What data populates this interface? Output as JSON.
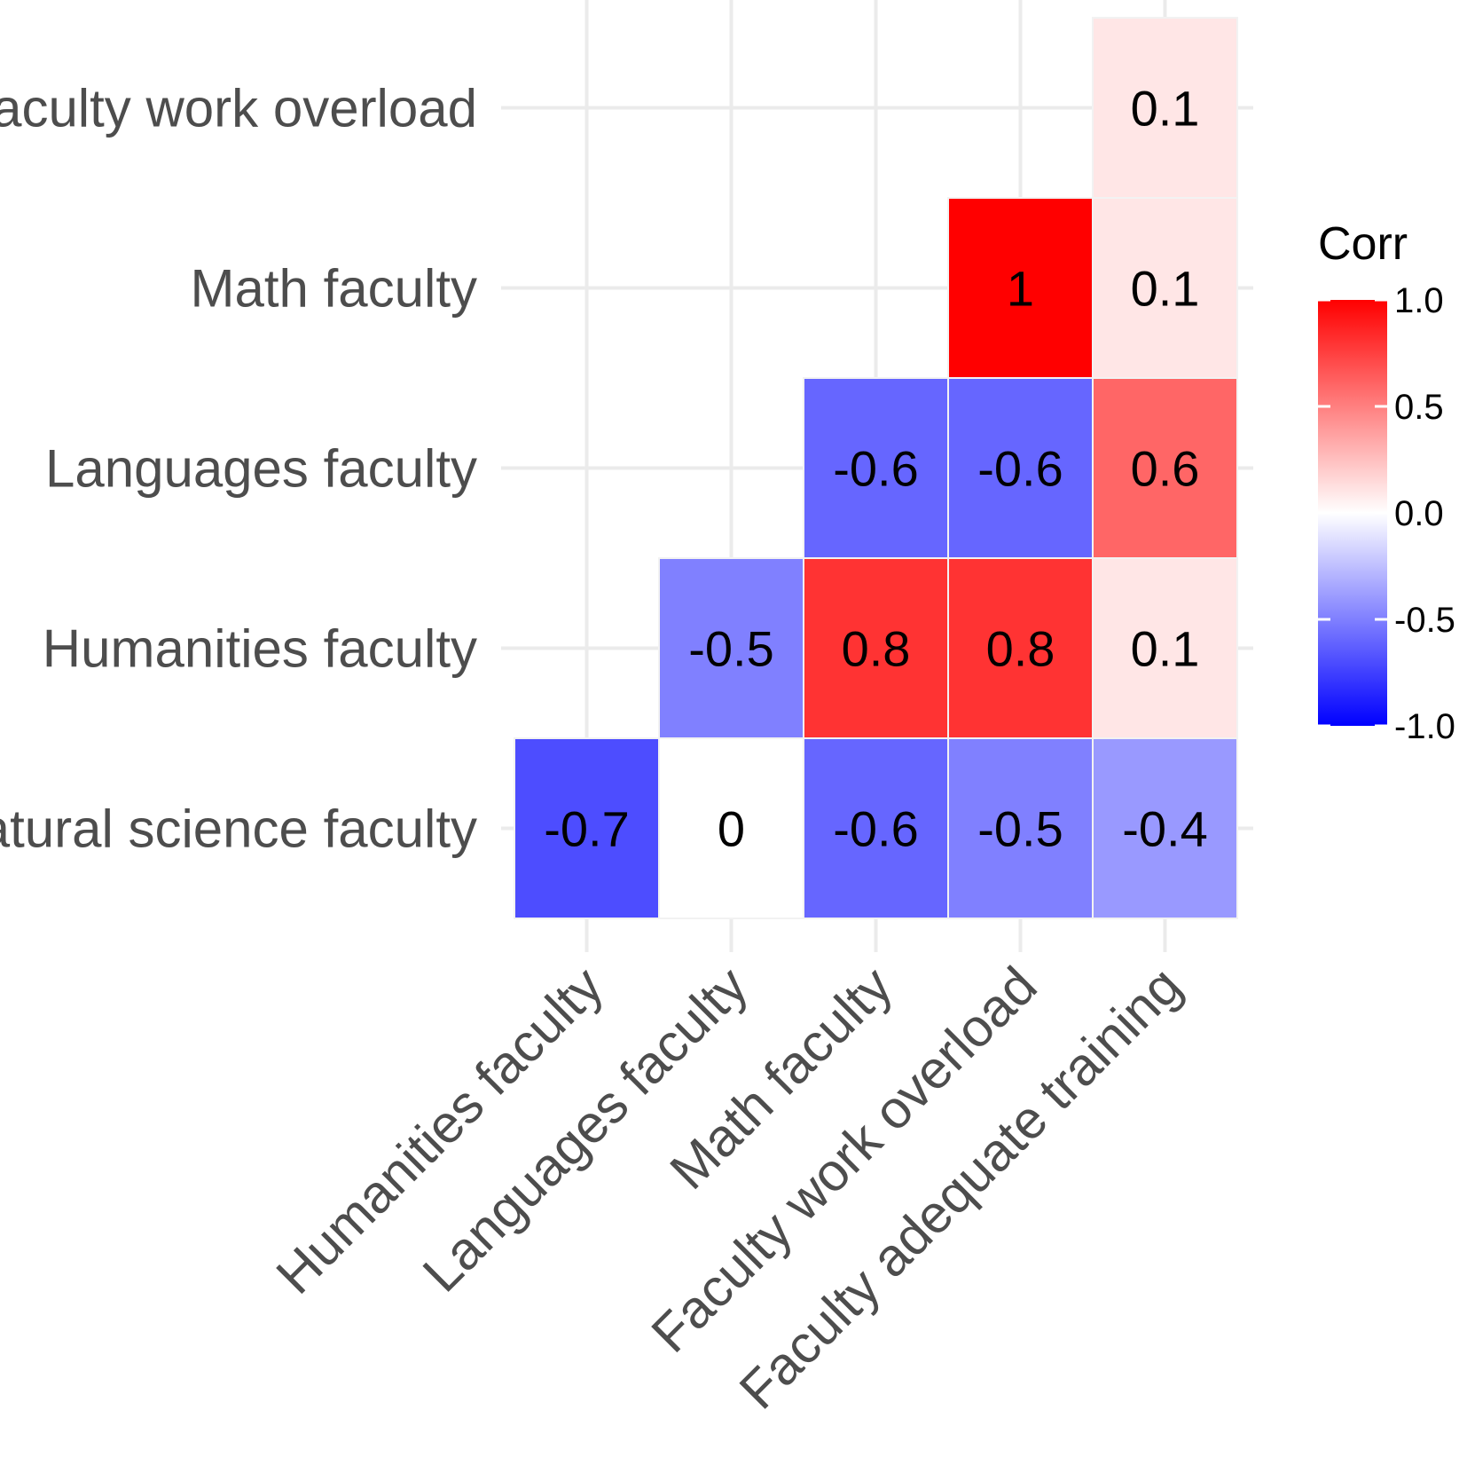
{
  "chart_data": {
    "type": "heatmap",
    "title": "",
    "xlabel": "",
    "ylabel": "",
    "x_categories": [
      "Humanities faculty",
      "Languages faculty",
      "Math faculty",
      "Faculty work overload",
      "Faculty adequate training"
    ],
    "y_categories": [
      "Natural science faculty",
      "Humanities faculty",
      "Languages faculty",
      "Math faculty",
      "Faculty work overload"
    ],
    "cells": [
      {
        "x": "Humanities faculty",
        "y": "Natural science faculty",
        "value": -0.7,
        "label": "-0.7"
      },
      {
        "x": "Languages faculty",
        "y": "Natural science faculty",
        "value": 0,
        "label": "0"
      },
      {
        "x": "Math faculty",
        "y": "Natural science faculty",
        "value": -0.6,
        "label": "-0.6"
      },
      {
        "x": "Faculty work overload",
        "y": "Natural science faculty",
        "value": -0.5,
        "label": "-0.5"
      },
      {
        "x": "Faculty adequate training",
        "y": "Natural science faculty",
        "value": -0.4,
        "label": "-0.4"
      },
      {
        "x": "Languages faculty",
        "y": "Humanities faculty",
        "value": -0.5,
        "label": "-0.5"
      },
      {
        "x": "Math faculty",
        "y": "Humanities faculty",
        "value": 0.8,
        "label": "0.8"
      },
      {
        "x": "Faculty work overload",
        "y": "Humanities faculty",
        "value": 0.8,
        "label": "0.8"
      },
      {
        "x": "Faculty adequate training",
        "y": "Humanities faculty",
        "value": 0.1,
        "label": "0.1"
      },
      {
        "x": "Math faculty",
        "y": "Languages faculty",
        "value": -0.6,
        "label": "-0.6"
      },
      {
        "x": "Faculty work overload",
        "y": "Languages faculty",
        "value": -0.6,
        "label": "-0.6"
      },
      {
        "x": "Faculty adequate training",
        "y": "Languages faculty",
        "value": 0.6,
        "label": "0.6"
      },
      {
        "x": "Faculty work overload",
        "y": "Math faculty",
        "value": 1,
        "label": "1"
      },
      {
        "x": "Faculty adequate training",
        "y": "Math faculty",
        "value": 0.1,
        "label": "0.1"
      },
      {
        "x": "Faculty adequate training",
        "y": "Faculty work overload",
        "value": 0.1,
        "label": "0.1"
      }
    ],
    "legend": {
      "title": "Corr",
      "range": [
        -1.0,
        1.0
      ],
      "ticks": [
        {
          "value": 1.0,
          "label": "1.0"
        },
        {
          "value": 0.5,
          "label": "0.5"
        },
        {
          "value": 0.0,
          "label": "0.0"
        },
        {
          "value": -0.5,
          "label": "-0.5"
        },
        {
          "value": -1.0,
          "label": "-1.0"
        }
      ],
      "placement": "right"
    },
    "colors": {
      "low": "#0000ff",
      "mid": "#ffffff",
      "high": "#ff0000"
    },
    "grid": true
  }
}
